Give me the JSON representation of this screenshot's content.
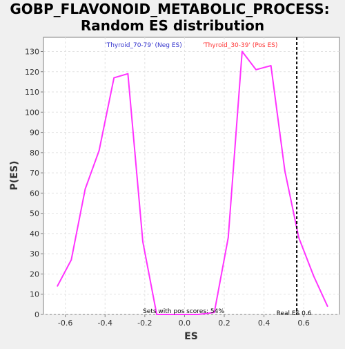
{
  "chart_data": {
    "type": "line",
    "title_line1": "GOBP_FLAVONOID_METABOLIC_PROCESS:",
    "title_line2": "Random ES distribution",
    "xlabel": "ES",
    "ylabel": "P(ES)",
    "xlim": [
      -0.71,
      0.78
    ],
    "ylim": [
      0,
      137
    ],
    "x_ticks": [
      -0.6,
      -0.4,
      -0.2,
      0.0,
      0.2,
      0.4,
      0.6
    ],
    "x_tick_labels": [
      "-0.6",
      "-0.4",
      "-0.2",
      "0.0",
      "0.2",
      "0.4",
      "0.6"
    ],
    "y_ticks": [
      0,
      10,
      20,
      30,
      40,
      50,
      60,
      70,
      80,
      90,
      100,
      110,
      120,
      130
    ],
    "y_tick_labels": [
      "0",
      "10",
      "20",
      "30",
      "40",
      "50",
      "60",
      "70",
      "80",
      "90",
      "100",
      "110",
      "120",
      "130"
    ],
    "grid": true,
    "series": [
      {
        "color": "#ff33ff",
        "x": [
          -0.64,
          -0.57,
          -0.5,
          -0.43,
          -0.355,
          -0.285,
          -0.21,
          -0.14,
          -0.07,
          0.0,
          0.07,
          0.15,
          0.22,
          0.29,
          0.36,
          0.435,
          0.505,
          0.575,
          0.65,
          0.72
        ],
        "y": [
          14,
          27,
          62,
          81,
          117,
          119,
          36,
          0,
          0,
          0,
          0,
          1,
          38,
          130,
          121,
          123,
          71,
          38,
          19,
          4
        ]
      }
    ],
    "real_es": 0.565,
    "annotations": {
      "neg_label": "'Thyroid_70-79' (Neg ES)",
      "neg_color": "#3333cc",
      "pos_label": "'Thyroid_30-39' (Pos ES)",
      "pos_color": "#ff3333",
      "pos_scores_text": "Sets with pos scores: 54%",
      "real_es_text": "Real ES 0.6"
    }
  }
}
